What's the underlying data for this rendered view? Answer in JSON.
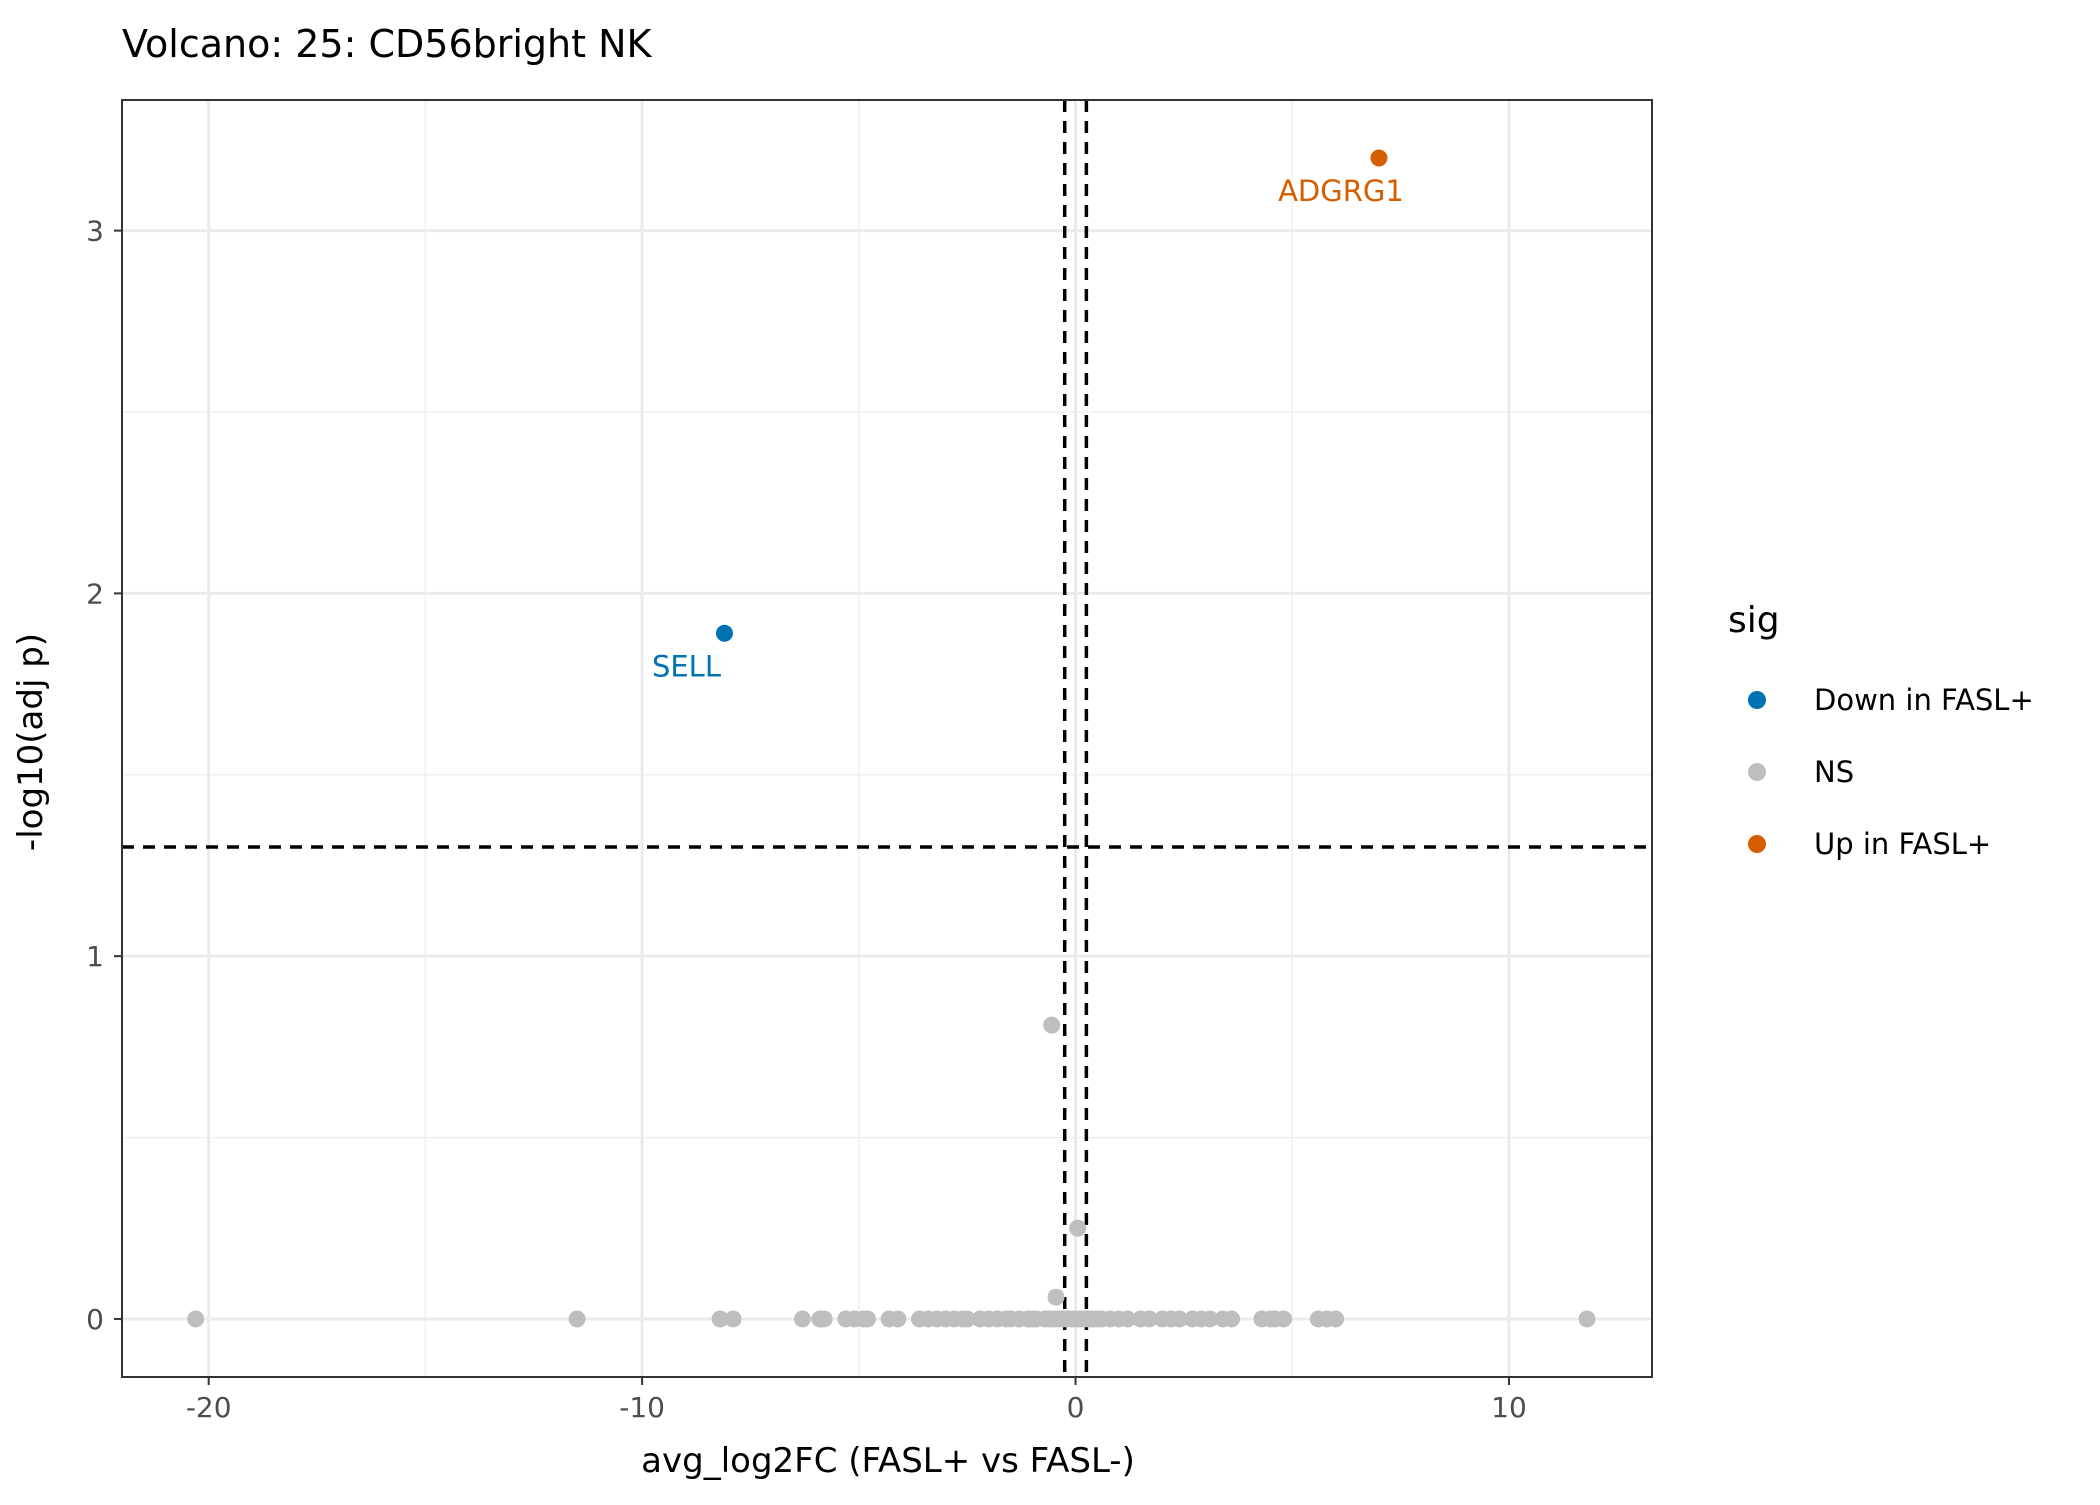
{
  "chart_data": {
    "type": "scatter",
    "title": "Volcano: 25: CD56bright NK",
    "xlabel": "avg_log2FC (FASL+ vs FASL-)",
    "ylabel": "-log10(adj p)",
    "xlim": [
      -22,
      13.3
    ],
    "ylim": [
      -0.16,
      3.36
    ],
    "x_ticks": [
      -20,
      -10,
      0,
      10
    ],
    "x_tick_labels": [
      "-20",
      "-10",
      "0",
      "10"
    ],
    "y_ticks": [
      0,
      1,
      2,
      3
    ],
    "y_tick_labels": [
      "0",
      "1",
      "2",
      "3"
    ],
    "grid": true,
    "reference_lines": {
      "vertical": [
        -0.25,
        0.25
      ],
      "horizontal": [
        1.301
      ],
      "style": "dashed"
    },
    "legend": {
      "title": "sig",
      "position": "right",
      "entries": [
        {
          "key": "down",
          "label": "Down in FASL+",
          "color": "#0072B2"
        },
        {
          "key": "ns",
          "label": "NS",
          "color": "#BEBEBE"
        },
        {
          "key": "up",
          "label": "Up in FASL+",
          "color": "#D55E00"
        }
      ]
    },
    "series": [
      {
        "key": "ns",
        "points": [
          {
            "x": -20.3,
            "y": 0
          },
          {
            "x": -11.5,
            "y": 0
          },
          {
            "x": -8.2,
            "y": 0
          },
          {
            "x": -7.9,
            "y": 0
          },
          {
            "x": -6.3,
            "y": 0
          },
          {
            "x": -5.9,
            "y": 0
          },
          {
            "x": -5.8,
            "y": 0
          },
          {
            "x": -5.3,
            "y": 0
          },
          {
            "x": -5.1,
            "y": 0
          },
          {
            "x": -4.9,
            "y": 0
          },
          {
            "x": -4.8,
            "y": 0
          },
          {
            "x": -4.3,
            "y": 0
          },
          {
            "x": -4.1,
            "y": 0
          },
          {
            "x": -3.6,
            "y": 0
          },
          {
            "x": -3.4,
            "y": 0
          },
          {
            "x": -3.2,
            "y": 0
          },
          {
            "x": -3.0,
            "y": 0
          },
          {
            "x": -2.8,
            "y": 0
          },
          {
            "x": -2.6,
            "y": 0
          },
          {
            "x": -2.5,
            "y": 0
          },
          {
            "x": -2.2,
            "y": 0
          },
          {
            "x": -2.0,
            "y": 0
          },
          {
            "x": -1.8,
            "y": 0
          },
          {
            "x": -1.6,
            "y": 0
          },
          {
            "x": -1.5,
            "y": 0
          },
          {
            "x": -1.3,
            "y": 0
          },
          {
            "x": -1.1,
            "y": 0
          },
          {
            "x": -1.0,
            "y": 0
          },
          {
            "x": -0.9,
            "y": 0
          },
          {
            "x": -0.7,
            "y": 0
          },
          {
            "x": -0.6,
            "y": 0
          },
          {
            "x": -0.5,
            "y": 0
          },
          {
            "x": -0.4,
            "y": 0
          },
          {
            "x": -0.3,
            "y": 0
          },
          {
            "x": -0.2,
            "y": 0
          },
          {
            "x": -0.1,
            "y": 0
          },
          {
            "x": 0.0,
            "y": 0
          },
          {
            "x": 0.1,
            "y": 0
          },
          {
            "x": 0.2,
            "y": 0
          },
          {
            "x": 0.3,
            "y": 0
          },
          {
            "x": 0.4,
            "y": 0
          },
          {
            "x": 0.5,
            "y": 0
          },
          {
            "x": 0.6,
            "y": 0
          },
          {
            "x": 0.8,
            "y": 0
          },
          {
            "x": 1.0,
            "y": 0
          },
          {
            "x": 1.2,
            "y": 0
          },
          {
            "x": 1.5,
            "y": 0
          },
          {
            "x": 1.7,
            "y": 0
          },
          {
            "x": 2.0,
            "y": 0
          },
          {
            "x": 2.2,
            "y": 0
          },
          {
            "x": 2.4,
            "y": 0
          },
          {
            "x": 2.7,
            "y": 0
          },
          {
            "x": 2.9,
            "y": 0
          },
          {
            "x": 3.1,
            "y": 0
          },
          {
            "x": 3.4,
            "y": 0
          },
          {
            "x": 3.6,
            "y": 0
          },
          {
            "x": 4.3,
            "y": 0
          },
          {
            "x": 4.5,
            "y": 0
          },
          {
            "x": 4.6,
            "y": 0
          },
          {
            "x": 4.8,
            "y": 0
          },
          {
            "x": 5.6,
            "y": 0
          },
          {
            "x": 5.8,
            "y": 0
          },
          {
            "x": 6.0,
            "y": 0
          },
          {
            "x": 11.8,
            "y": 0
          },
          {
            "x": -0.55,
            "y": 0.81
          },
          {
            "x": 0.05,
            "y": 0.25
          },
          {
            "x": -0.45,
            "y": 0.06
          }
        ]
      },
      {
        "key": "down",
        "points": [
          {
            "x": -8.1,
            "y": 1.89,
            "label": "SELL"
          }
        ]
      },
      {
        "key": "up",
        "points": [
          {
            "x": 7.0,
            "y": 3.2,
            "label": "ADGRG1"
          }
        ]
      }
    ]
  }
}
